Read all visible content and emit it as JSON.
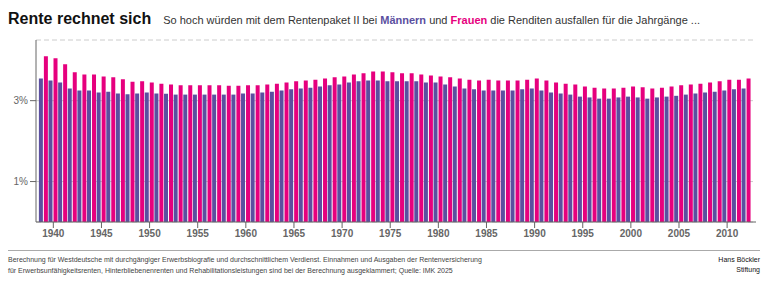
{
  "chart_data": {
    "type": "bar",
    "title": "Rente rechnet sich",
    "subtitle": "So hoch würden mit dem Rentenpaket II bei Männern und Frauen die Renditen ausfallen für die Jahrgänge ...",
    "annotations": [
      "Berechnung für Westdeutsche mit durchgängiger Erwerbsbiografie und durchschnittlichem Verdienst. Einnahmen und Ausgaben der Rentenversicherung",
      "für Erwerbsunfähigkeitsrenten, Hinterbliebenenrenten und Rehabilitationsleistungen sind bei der Berechnung ausgeklammert; Quelle: IMK 2025",
      "Hans Böckler\nStiftung"
    ],
    "x": [
      1939,
      1940,
      1941,
      1942,
      1943,
      1944,
      1945,
      1946,
      1947,
      1948,
      1949,
      1950,
      1951,
      1952,
      1953,
      1954,
      1955,
      1956,
      1957,
      1958,
      1959,
      1960,
      1961,
      1962,
      1963,
      1964,
      1965,
      1966,
      1967,
      1968,
      1969,
      1970,
      1971,
      1972,
      1973,
      1974,
      1975,
      1976,
      1977,
      1978,
      1979,
      1980,
      1981,
      1982,
      1983,
      1984,
      1985,
      1986,
      1987,
      1988,
      1989,
      1990,
      1991,
      1992,
      1993,
      1994,
      1995,
      1996,
      1997,
      1998,
      1999,
      2000,
      2001,
      2002,
      2003,
      2004,
      2005,
      2006,
      2007,
      2008,
      2009,
      2010,
      2011,
      2012
    ],
    "series": [
      {
        "name": "Männern",
        "color": "#5b4fa0",
        "values": [
          3.55,
          3.5,
          3.45,
          3.3,
          3.25,
          3.25,
          3.2,
          3.22,
          3.18,
          3.16,
          3.18,
          3.2,
          3.18,
          3.17,
          3.15,
          3.15,
          3.15,
          3.15,
          3.15,
          3.15,
          3.15,
          3.18,
          3.18,
          3.2,
          3.22,
          3.25,
          3.28,
          3.3,
          3.32,
          3.35,
          3.38,
          3.4,
          3.45,
          3.48,
          3.5,
          3.5,
          3.48,
          3.48,
          3.48,
          3.48,
          3.45,
          3.45,
          3.4,
          3.35,
          3.3,
          3.28,
          3.25,
          3.25,
          3.25,
          3.25,
          3.28,
          3.3,
          3.25,
          3.2,
          3.18,
          3.15,
          3.1,
          3.08,
          3.05,
          3.05,
          3.08,
          3.1,
          3.08,
          3.05,
          3.08,
          3.1,
          3.12,
          3.15,
          3.18,
          3.2,
          3.22,
          3.25,
          3.28,
          3.3
        ]
      },
      {
        "name": "Frauen",
        "color": "#e6007e",
        "values": [
          4.1,
          4.05,
          3.9,
          3.7,
          3.65,
          3.65,
          3.6,
          3.58,
          3.53,
          3.47,
          3.48,
          3.45,
          3.42,
          3.4,
          3.38,
          3.38,
          3.38,
          3.38,
          3.38,
          3.37,
          3.37,
          3.38,
          3.38,
          3.4,
          3.42,
          3.45,
          3.48,
          3.5,
          3.52,
          3.55,
          3.58,
          3.6,
          3.65,
          3.68,
          3.72,
          3.72,
          3.7,
          3.68,
          3.68,
          3.65,
          3.62,
          3.6,
          3.58,
          3.55,
          3.52,
          3.5,
          3.52,
          3.5,
          3.5,
          3.5,
          3.52,
          3.55,
          3.5,
          3.45,
          3.42,
          3.4,
          3.35,
          3.32,
          3.3,
          3.3,
          3.32,
          3.35,
          3.33,
          3.3,
          3.32,
          3.35,
          3.38,
          3.4,
          3.42,
          3.45,
          3.48,
          3.52,
          3.52,
          3.55
        ]
      }
    ],
    "xlim": [
      1938.2,
      2013.0
    ],
    "xticks": [
      1940,
      1945,
      1950,
      1955,
      1960,
      1965,
      1970,
      1975,
      1980,
      1985,
      1990,
      1995,
      2000,
      2005,
      2010
    ],
    "ylim": [
      0,
      4.5
    ],
    "yticks": [
      {
        "value": 1,
        "label": "1%"
      },
      {
        "value": 3,
        "label": "3%"
      }
    ],
    "grid": true
  }
}
